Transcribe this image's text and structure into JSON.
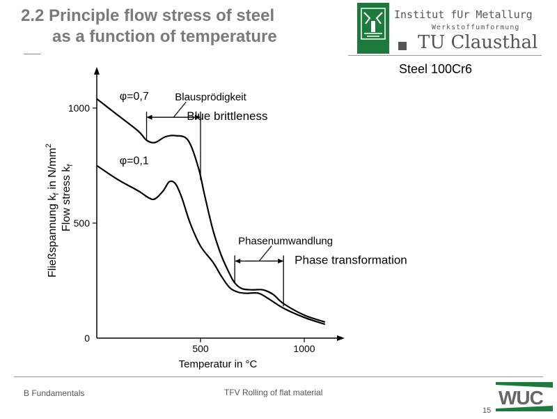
{
  "slide": {
    "title_line1": "2.2 Principle flow stress of steel",
    "title_line2": "as a function of temperature",
    "institute_line": "Institut fUr Metallurg",
    "institute_sub": "Werkstoffumformung",
    "university": "TU Clausthal",
    "material": "Steel 100Cr6",
    "footer_left": "B Fundamentals",
    "footer_center": "TFV Rolling of flat material",
    "page_number": "15",
    "brand_logo": "WUC",
    "colors": {
      "title": "#7a7a7a",
      "logo_green": "#1e7a3c",
      "text_gray": "#555555"
    }
  },
  "chart_data": {
    "type": "line",
    "xlabel": "Temperatur in °C",
    "ylabel_de": "Fließspannung k",
    "ylabel_de_sub": "f",
    "ylabel_de_unit": "in N/mm",
    "ylabel_de_sup": "2",
    "ylabel_en": "Flow stress k",
    "ylabel_en_sub": "f",
    "xlim": [
      0,
      1150
    ],
    "ylim": [
      0,
      1050
    ],
    "x_ticks": [
      500,
      1000
    ],
    "x_tick_labels": [
      "500",
      "1000"
    ],
    "y_ticks": [
      0,
      500,
      1000
    ],
    "y_tick_labels": [
      "0",
      "500",
      "1000"
    ],
    "grid": false,
    "series": [
      {
        "name": "φ=0,7",
        "x": [
          0,
          100,
          200,
          240,
          280,
          330,
          380,
          440,
          490,
          520,
          560,
          600,
          640,
          665,
          700,
          750,
          800,
          850,
          900,
          1000,
          1100
        ],
        "y": [
          1040,
          970,
          900,
          860,
          850,
          875,
          880,
          860,
          740,
          620,
          470,
          360,
          280,
          240,
          215,
          210,
          210,
          190,
          150,
          100,
          70
        ]
      },
      {
        "name": "φ=0,1",
        "x": [
          0,
          100,
          200,
          250,
          280,
          320,
          350,
          380,
          410,
          450,
          500,
          560,
          600,
          640,
          680,
          720,
          780,
          830,
          900,
          1000,
          1100
        ],
        "y": [
          750,
          690,
          640,
          610,
          605,
          640,
          680,
          670,
          610,
          500,
          400,
          330,
          270,
          220,
          200,
          195,
          195,
          170,
          130,
          90,
          60
        ]
      }
    ],
    "annotations": [
      {
        "text": "Blausprödigkeit",
        "translation": "Blue brittleness",
        "x_start": 240,
        "x_end": 500,
        "y": 960
      },
      {
        "text": "Phasenumwandlung",
        "translation": "Phase transformation",
        "x_start": 665,
        "x_end": 900,
        "y": 335
      }
    ]
  }
}
